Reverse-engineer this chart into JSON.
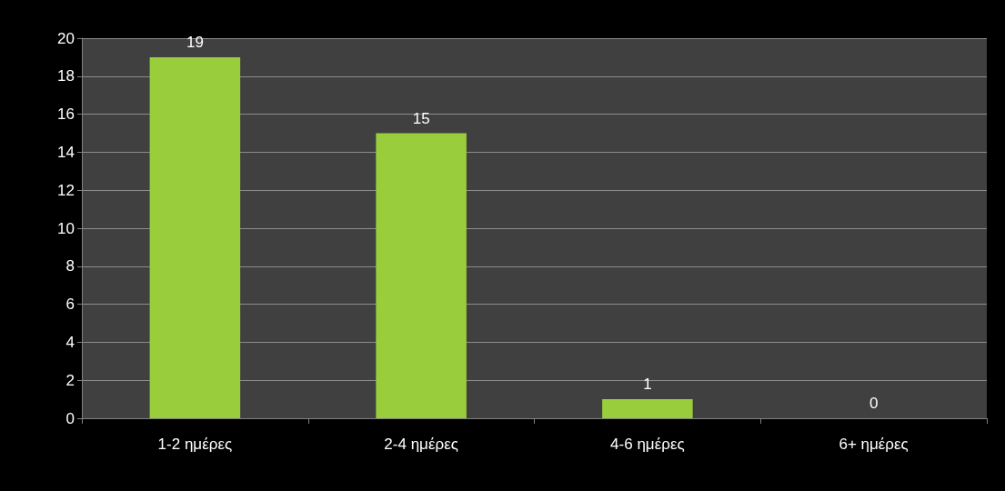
{
  "chart_data": {
    "type": "bar",
    "categories": [
      "1-2 ημέρες",
      "2-4 ημέρες",
      "4-6 ημέρες",
      "6+ ημέρες"
    ],
    "values": [
      19,
      15,
      1,
      0
    ],
    "color": "#9acd3c",
    "ylim": [
      0,
      20
    ],
    "yticks": [
      0,
      2,
      4,
      6,
      8,
      10,
      12,
      14,
      16,
      18,
      20
    ],
    "grid": "y",
    "data_labels": true
  }
}
